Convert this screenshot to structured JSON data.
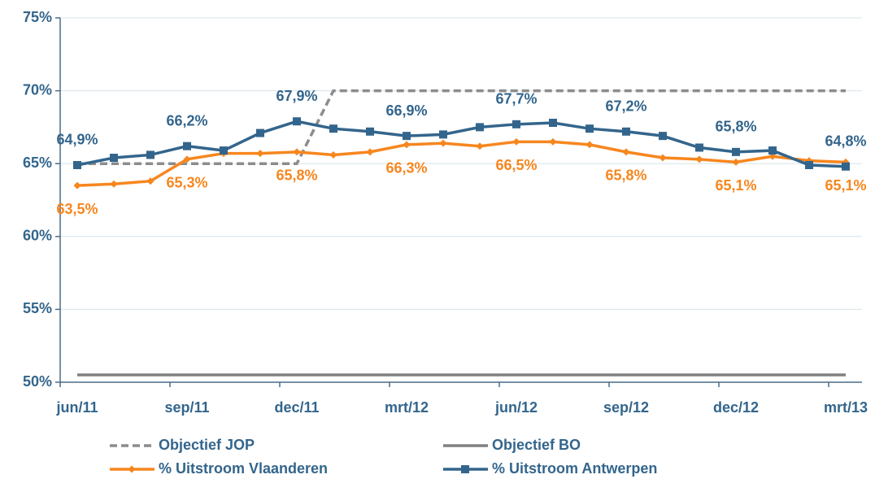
{
  "chart_data": {
    "type": "line",
    "categories": [
      "jun/11",
      null,
      null,
      "sep/11",
      null,
      null,
      "dec/11",
      null,
      null,
      "mrt/12",
      null,
      null,
      "jun/12",
      null,
      null,
      "sep/12",
      null,
      null,
      "dec/12",
      null,
      null,
      "mrt/13"
    ],
    "ylim": [
      50,
      75
    ],
    "yticks": [
      {
        "value": 50,
        "label": "50%"
      },
      {
        "value": 55,
        "label": "55%"
      },
      {
        "value": 60,
        "label": "60%"
      },
      {
        "value": 65,
        "label": "65%"
      },
      {
        "value": 70,
        "label": "70%"
      },
      {
        "value": 75,
        "label": "75%"
      }
    ],
    "grid": true,
    "series": [
      {
        "name": "Objectief JOP",
        "color": "#8c8c8c",
        "dash": true,
        "marker": "none",
        "values": [
          65,
          65,
          65,
          65,
          65,
          65,
          65,
          70,
          70,
          70,
          70,
          70,
          70,
          70,
          70,
          70,
          70,
          70,
          70,
          70,
          70,
          70
        ]
      },
      {
        "name": "Objectief BO",
        "color": "#808080",
        "dash": false,
        "marker": "none",
        "values": [
          50.5,
          50.5,
          50.5,
          50.5,
          50.5,
          50.5,
          50.5,
          50.5,
          50.5,
          50.5,
          50.5,
          50.5,
          50.5,
          50.5,
          50.5,
          50.5,
          50.5,
          50.5,
          50.5,
          50.5,
          50.5,
          50.5
        ]
      },
      {
        "name": "% Uitstroom Vlaanderen",
        "color": "#f7861e",
        "dash": false,
        "marker": "diamond",
        "label_side": "below",
        "values": [
          63.5,
          63.6,
          63.8,
          65.3,
          65.7,
          65.7,
          65.8,
          65.6,
          65.8,
          66.3,
          66.4,
          66.2,
          66.5,
          66.5,
          66.3,
          65.8,
          65.4,
          65.3,
          65.1,
          65.5,
          65.2,
          65.1
        ],
        "value_labels": [
          "63,5%",
          null,
          null,
          "65,3%",
          null,
          null,
          "65,8%",
          null,
          null,
          "66,3%",
          null,
          null,
          "66,5%",
          null,
          null,
          "65,8%",
          null,
          null,
          "65,1%",
          null,
          null,
          "65,1%"
        ]
      },
      {
        "name": "% Uitstroom Antwerpen",
        "color": "#33658c",
        "dash": false,
        "marker": "square",
        "label_side": "above",
        "values": [
          64.9,
          65.4,
          65.6,
          66.2,
          65.9,
          67.1,
          67.9,
          67.4,
          67.2,
          66.9,
          67.0,
          67.5,
          67.7,
          67.8,
          67.4,
          67.2,
          66.9,
          66.1,
          65.8,
          65.9,
          64.9,
          64.8
        ],
        "value_labels": [
          "64,9%",
          null,
          null,
          "66,2%",
          null,
          null,
          "67,9%",
          null,
          null,
          "66,9%",
          null,
          null,
          "67,7%",
          null,
          null,
          "67,2%",
          null,
          null,
          "65,8%",
          null,
          null,
          "64,8%"
        ]
      }
    ]
  }
}
